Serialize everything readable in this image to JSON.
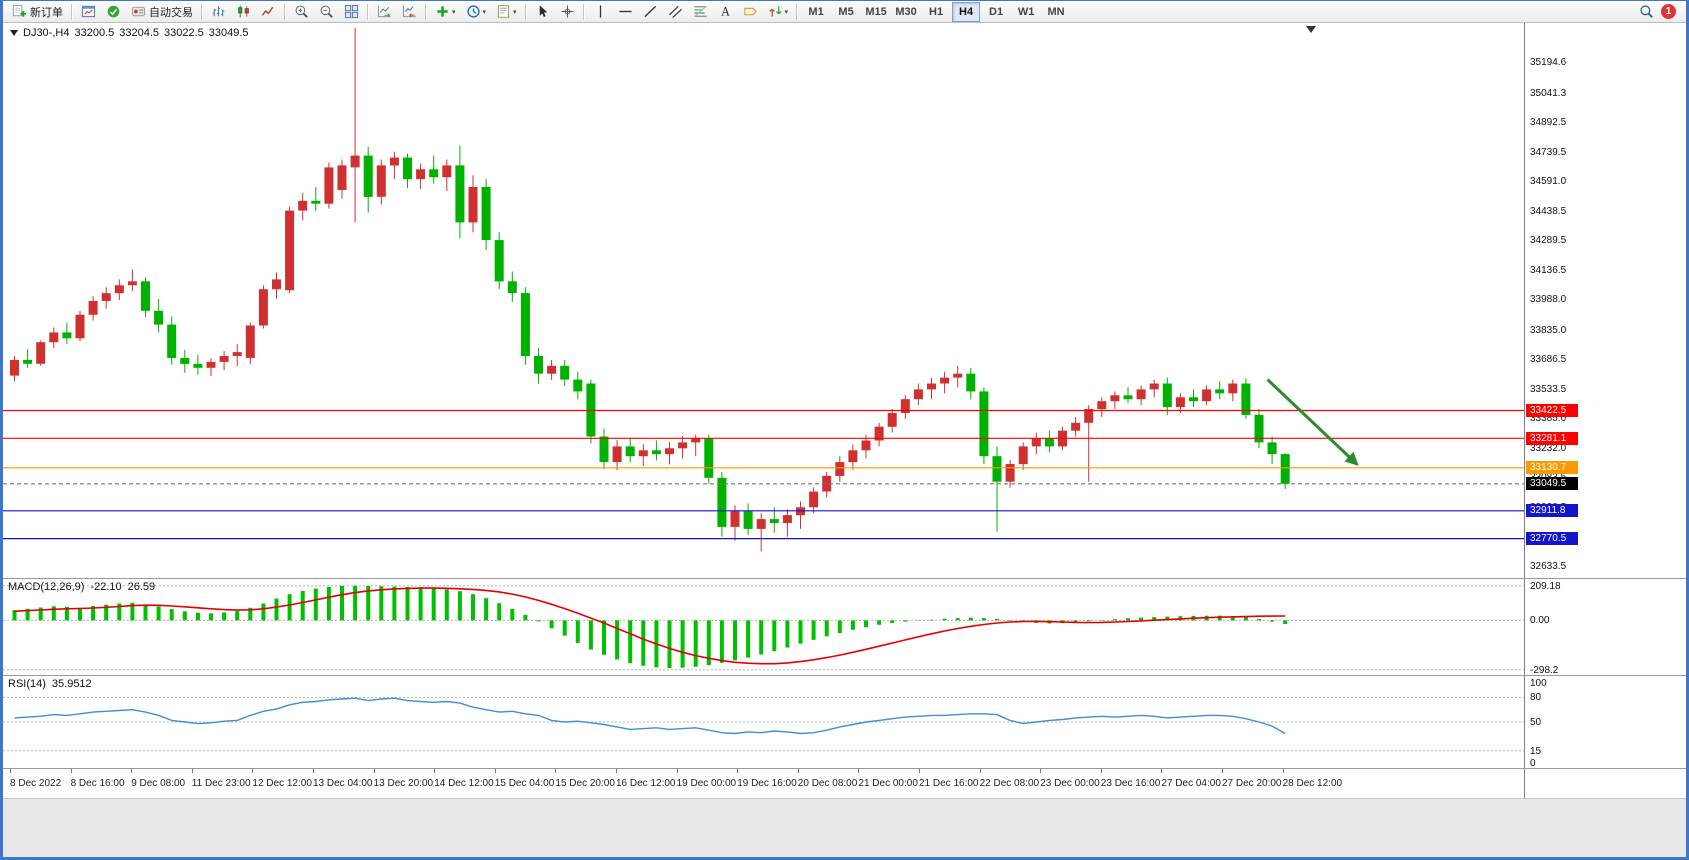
{
  "toolbar": {
    "items": [
      {
        "type": "button",
        "name": "new-order",
        "icon": "new-order-icon",
        "label": "新订单"
      },
      {
        "type": "sep"
      },
      {
        "type": "button",
        "name": "profile-charts",
        "icon": "chart-window-icon"
      },
      {
        "type": "button",
        "name": "market-watch",
        "icon": "quotes-icon"
      },
      {
        "type": "button",
        "name": "auto-trading",
        "icon": "autotrading-icon",
        "label": "自动交易"
      },
      {
        "type": "sep"
      },
      {
        "type": "button",
        "name": "bar-chart-mode",
        "icon": "bar-chart-icon"
      },
      {
        "type": "button",
        "name": "candlestick-mode",
        "icon": "candlestick-icon"
      },
      {
        "type": "button",
        "name": "line-chart-mode",
        "icon": "line-chart-icon"
      },
      {
        "type": "sep"
      },
      {
        "type": "button",
        "name": "zoom-in",
        "icon": "zoom-in-icon"
      },
      {
        "type": "button",
        "name": "zoom-out",
        "icon": "zoom-out-icon"
      },
      {
        "type": "button",
        "name": "tile-windows",
        "icon": "tile-windows-icon"
      },
      {
        "type": "sep"
      },
      {
        "type": "button",
        "name": "auto-scroll",
        "icon": "auto-scroll-icon"
      },
      {
        "type": "button",
        "name": "chart-shift",
        "icon": "chart-shift-icon"
      },
      {
        "type": "sep"
      },
      {
        "type": "button",
        "name": "indicators",
        "icon": "indicators-icon",
        "caret": true
      },
      {
        "type": "button",
        "name": "periods",
        "icon": "cycles-icon",
        "caret": true
      },
      {
        "type": "button",
        "name": "templates",
        "icon": "template-icon",
        "caret": true
      },
      {
        "type": "sep"
      },
      {
        "type": "button",
        "name": "cursor",
        "icon": "cursor-icon"
      },
      {
        "type": "button",
        "name": "crosshair",
        "icon": "crosshair-icon"
      },
      {
        "type": "sep"
      },
      {
        "type": "button",
        "name": "vertical-line",
        "icon": "vline-icon"
      },
      {
        "type": "button",
        "name": "horizontal-line",
        "icon": "hline-icon"
      },
      {
        "type": "button",
        "name": "trend-line",
        "icon": "trendline-icon"
      },
      {
        "type": "button",
        "name": "equidistant-channel",
        "icon": "channel-icon"
      },
      {
        "type": "button",
        "name": "fibonacci",
        "icon": "fibonacci-icon"
      },
      {
        "type": "button",
        "name": "text",
        "icon": "text-icon"
      },
      {
        "type": "button",
        "name": "text-label",
        "icon": "label-icon"
      },
      {
        "type": "button",
        "name": "arrows",
        "icon": "arrows-icon",
        "caret": true
      },
      {
        "type": "sep"
      }
    ],
    "timeframes": {
      "items": [
        "M1",
        "M5",
        "M15",
        "M30",
        "H1",
        "H4",
        "D1",
        "W1",
        "MN"
      ],
      "active": "H4"
    },
    "right": {
      "search_icon": "search-icon",
      "badge": "1"
    }
  },
  "chart_data": {
    "type": "candlestick",
    "header": {
      "symbol_period": "DJ30-,H4",
      "open": "33200.5",
      "high": "33204.5",
      "low": "33022.5",
      "close": "33049.5"
    },
    "colors": {
      "up": "#cf3131",
      "down": "#00b100",
      "background": "#ffffff",
      "frame": "#3c77cc"
    },
    "price_range": [
      32570,
      35400
    ],
    "price_axis_ticks": [
      "35194.6",
      "35041.3",
      "34892.5",
      "34739.5",
      "34591.0",
      "34438.5",
      "34289.5",
      "34136.5",
      "33988.0",
      "33835.0",
      "33686.5",
      "33533.5",
      "33385.0",
      "33232.0",
      "33083.5",
      "32930.5",
      "32782.0",
      "32633.5"
    ],
    "levels": [
      {
        "price": 33422.5,
        "label": "33422.5",
        "color": "#ff0000",
        "line_color": "#ff0000",
        "style": "solid"
      },
      {
        "price": 33281.1,
        "label": "33281.1",
        "color": "#ff0000",
        "line_color": "#ff0000",
        "style": "solid"
      },
      {
        "price": 33130.7,
        "label": "33130.7",
        "color": "#ff9900",
        "line_color": "#ff9900",
        "style": "solid"
      },
      {
        "price": 33049.5,
        "label": "33049.5",
        "color": "#000000",
        "line_color": "#777777",
        "style": "dashed",
        "role": "bid-price"
      },
      {
        "price": 32911.8,
        "label": "32911.8",
        "color": "#1414cc",
        "line_color": "#1414cc",
        "style": "solid"
      },
      {
        "price": 32770.5,
        "label": "32770.5",
        "color": "#1414cc",
        "line_color": "#1414cc",
        "style": "solid"
      }
    ],
    "time_labels": [
      "8 Dec 2022",
      "8 Dec 16:00",
      "9 Dec 08:00",
      "11 Dec 23:00",
      "12 Dec 12:00",
      "13 Dec 04:00",
      "13 Dec 20:00",
      "14 Dec 12:00",
      "15 Dec 04:00",
      "15 Dec 20:00",
      "16 Dec 12:00",
      "19 Dec 00:00",
      "19 Dec 16:00",
      "20 Dec 08:00",
      "21 Dec 00:00",
      "21 Dec 16:00",
      "22 Dec 08:00",
      "23 Dec 00:00",
      "23 Dec 16:00",
      "27 Dec 04:00",
      "27 Dec 20:00",
      "28 Dec 12:00"
    ],
    "ohlc": [
      [
        33600,
        33700,
        33570,
        33680
      ],
      [
        33680,
        33735,
        33640,
        33660
      ],
      [
        33660,
        33780,
        33650,
        33770
      ],
      [
        33770,
        33845,
        33740,
        33820
      ],
      [
        33820,
        33870,
        33760,
        33790
      ],
      [
        33790,
        33930,
        33775,
        33910
      ],
      [
        33910,
        34005,
        33880,
        33980
      ],
      [
        33980,
        34050,
        33940,
        34020
      ],
      [
        34020,
        34090,
        33985,
        34060
      ],
      [
        34060,
        34140,
        34030,
        34080
      ],
      [
        34080,
        34100,
        33900,
        33930
      ],
      [
        33930,
        33990,
        33820,
        33860
      ],
      [
        33860,
        33900,
        33655,
        33690
      ],
      [
        33690,
        33730,
        33615,
        33660
      ],
      [
        33660,
        33705,
        33605,
        33640
      ],
      [
        33640,
        33690,
        33598,
        33670
      ],
      [
        33670,
        33725,
        33628,
        33700
      ],
      [
        33700,
        33760,
        33648,
        33720
      ],
      [
        33690,
        33870,
        33660,
        33855
      ],
      [
        33855,
        34060,
        33840,
        34040
      ],
      [
        34040,
        34125,
        33990,
        34090
      ],
      [
        34035,
        34460,
        34020,
        34440
      ],
      [
        34440,
        34530,
        34390,
        34490
      ],
      [
        34490,
        34560,
        34438,
        34475
      ],
      [
        34475,
        34685,
        34450,
        34660
      ],
      [
        34545,
        34700,
        34500,
        34670
      ],
      [
        34660,
        35370,
        34380,
        34720
      ],
      [
        34720,
        34765,
        34430,
        34510
      ],
      [
        34510,
        34700,
        34470,
        34670
      ],
      [
        34670,
        34740,
        34600,
        34710
      ],
      [
        34710,
        34730,
        34555,
        34600
      ],
      [
        34600,
        34680,
        34550,
        34650
      ],
      [
        34650,
        34720,
        34578,
        34610
      ],
      [
        34610,
        34700,
        34540,
        34670
      ],
      [
        34670,
        34770,
        34300,
        34380
      ],
      [
        34380,
        34620,
        34330,
        34560
      ],
      [
        34560,
        34600,
        34240,
        34290
      ],
      [
        34290,
        34330,
        34040,
        34080
      ],
      [
        34080,
        34130,
        33975,
        34020
      ],
      [
        34020,
        34050,
        33655,
        33700
      ],
      [
        33700,
        33740,
        33560,
        33610
      ],
      [
        33610,
        33680,
        33578,
        33650
      ],
      [
        33650,
        33680,
        33548,
        33580
      ],
      [
        33580,
        33620,
        33480,
        33520
      ],
      [
        33560,
        33580,
        33255,
        33290
      ],
      [
        33290,
        33330,
        33125,
        33160
      ],
      [
        33160,
        33272,
        33118,
        33240
      ],
      [
        33240,
        33282,
        33158,
        33190
      ],
      [
        33190,
        33252,
        33140,
        33220
      ],
      [
        33220,
        33270,
        33168,
        33200
      ],
      [
        33200,
        33262,
        33148,
        33230
      ],
      [
        33230,
        33292,
        33178,
        33260
      ],
      [
        33260,
        33300,
        33190,
        33280
      ],
      [
        33280,
        33300,
        33050,
        33080
      ],
      [
        33080,
        33110,
        32780,
        32830
      ],
      [
        32830,
        32940,
        32760,
        32910
      ],
      [
        32910,
        32950,
        32790,
        32820
      ],
      [
        32820,
        32900,
        32705,
        32870
      ],
      [
        32870,
        32930,
        32800,
        32850
      ],
      [
        32850,
        32920,
        32780,
        32890
      ],
      [
        32890,
        32960,
        32820,
        32930
      ],
      [
        32930,
        33030,
        32900,
        33010
      ],
      [
        33010,
        33110,
        32980,
        33090
      ],
      [
        33090,
        33190,
        33060,
        33160
      ],
      [
        33160,
        33250,
        33120,
        33220
      ],
      [
        33220,
        33300,
        33180,
        33270
      ],
      [
        33270,
        33360,
        33240,
        33340
      ],
      [
        33340,
        33430,
        33310,
        33410
      ],
      [
        33410,
        33500,
        33380,
        33480
      ],
      [
        33480,
        33560,
        33450,
        33530
      ],
      [
        33530,
        33590,
        33480,
        33560
      ],
      [
        33560,
        33620,
        33510,
        33590
      ],
      [
        33590,
        33650,
        33540,
        33610
      ],
      [
        33610,
        33640,
        33480,
        33520
      ],
      [
        33520,
        33540,
        33150,
        33190
      ],
      [
        33190,
        33240,
        32805,
        33060
      ],
      [
        33060,
        33170,
        33030,
        33150
      ],
      [
        33150,
        33260,
        33120,
        33240
      ],
      [
        33240,
        33310,
        33200,
        33280
      ],
      [
        33280,
        33320,
        33210,
        33240
      ],
      [
        33240,
        33340,
        33220,
        33320
      ],
      [
        33320,
        33390,
        33290,
        33360
      ],
      [
        33360,
        33450,
        33060,
        33430
      ],
      [
        33430,
        33490,
        33390,
        33470
      ],
      [
        33470,
        33520,
        33430,
        33500
      ],
      [
        33500,
        33540,
        33460,
        33480
      ],
      [
        33480,
        33550,
        33450,
        33530
      ],
      [
        33530,
        33580,
        33490,
        33560
      ],
      [
        33560,
        33590,
        33400,
        33440
      ],
      [
        33440,
        33510,
        33410,
        33490
      ],
      [
        33490,
        33530,
        33440,
        33470
      ],
      [
        33470,
        33550,
        33450,
        33530
      ],
      [
        33530,
        33570,
        33480,
        33510
      ],
      [
        33510,
        33580,
        33470,
        33560
      ],
      [
        33560,
        33585,
        33380,
        33400
      ],
      [
        33400,
        33430,
        33230,
        33260
      ],
      [
        33260,
        33290,
        33150,
        33200
      ],
      [
        33200.5,
        33204.5,
        33022.5,
        33049.5
      ]
    ],
    "annotations": [
      {
        "type": "arrow",
        "color": "#2e8b2e",
        "from_bar": 96,
        "from_price": 33580,
        "to_bar": 102.8,
        "to_price": 33150
      }
    ],
    "indicators": [
      {
        "name": "MACD",
        "display": "MACD(12,26,9)",
        "value_main": "-22.10",
        "value_signal": "26.59",
        "axis_ticks": [
          "209.18",
          "0.00",
          "-298.2"
        ],
        "range": [
          -330,
          250
        ],
        "histogram_color": "#00c000",
        "signal_color": "#e60000",
        "histogram": [
          62,
          70,
          78,
          85,
          82,
          76,
          86,
          95,
          102,
          106,
          96,
          84,
          68,
          55,
          46,
          42,
          48,
          56,
          76,
          102,
          132,
          158,
          178,
          192,
          202,
          208,
          209.18,
          208,
          206,
          204,
          202,
          200,
          196,
          188,
          176,
          158,
          134,
          104,
          70,
          34,
          -6,
          -48,
          -92,
          -136,
          -176,
          -208,
          -236,
          -258,
          -274,
          -284,
          -288,
          -286,
          -280,
          -270,
          -257,
          -242,
          -225,
          -206,
          -186,
          -164,
          -141,
          -118,
          -96,
          -76,
          -57,
          -41,
          -27,
          -16,
          -8,
          -2,
          4,
          10,
          14,
          16,
          14,
          9,
          2,
          -7,
          -15,
          -19,
          -17,
          -12,
          -5,
          2,
          8,
          13,
          17,
          20,
          23,
          25,
          27,
          28,
          28,
          26,
          20,
          8,
          -8,
          -22.1
        ],
        "signal": [
          55,
          59,
          63,
          67,
          70,
          72,
          75,
          79,
          84,
          89,
          92,
          91,
          87,
          82,
          76,
          70,
          65,
          62,
          64,
          70,
          80,
          93,
          108,
          124,
          140,
          155,
          168,
          178,
          185,
          190,
          193,
          195,
          195,
          194,
          191,
          187,
          181,
          172,
          159,
          142,
          121,
          97,
          71,
          43,
          14,
          -16,
          -49,
          -81,
          -113,
          -143,
          -169,
          -193,
          -213,
          -229,
          -243,
          -253,
          -259,
          -262,
          -262,
          -257,
          -249,
          -238,
          -225,
          -210,
          -193,
          -175,
          -156,
          -137,
          -118,
          -99,
          -81,
          -64,
          -49,
          -36,
          -25,
          -16,
          -10,
          -7,
          -6,
          -8,
          -10,
          -12,
          -13,
          -12,
          -10,
          -7,
          -3,
          1,
          5,
          9,
          13,
          16,
          19,
          21,
          23,
          25,
          26,
          26.59
        ]
      },
      {
        "name": "RSI",
        "display": "RSI(14)",
        "value": "35.9512",
        "axis_ticks": [
          "100",
          "80",
          "50",
          "15",
          "0"
        ],
        "levels": [
          80,
          50,
          15
        ],
        "range": [
          -6,
          106
        ],
        "line_color": "#3f8fd2",
        "values": [
          55,
          56,
          57,
          59,
          58,
          60,
          62,
          63,
          64,
          65,
          62,
          58,
          52,
          50,
          48,
          49,
          51,
          52,
          58,
          63,
          66,
          71,
          74,
          75,
          77,
          78,
          79,
          76,
          78,
          79,
          76,
          75,
          74,
          75,
          73,
          68,
          65,
          62,
          63,
          60,
          58,
          52,
          50,
          51,
          49,
          47,
          44,
          41,
          42,
          43,
          41,
          42,
          43,
          40,
          37,
          36,
          38,
          37,
          39,
          38,
          36,
          37,
          40,
          44,
          47,
          50,
          52,
          54,
          56,
          57,
          58,
          58,
          59,
          60,
          60,
          59,
          52,
          48,
          50,
          52,
          53,
          55,
          56,
          57,
          56,
          57,
          58,
          57,
          55,
          56,
          57,
          58,
          58,
          57,
          54,
          50,
          45,
          35.95
        ]
      }
    ]
  }
}
